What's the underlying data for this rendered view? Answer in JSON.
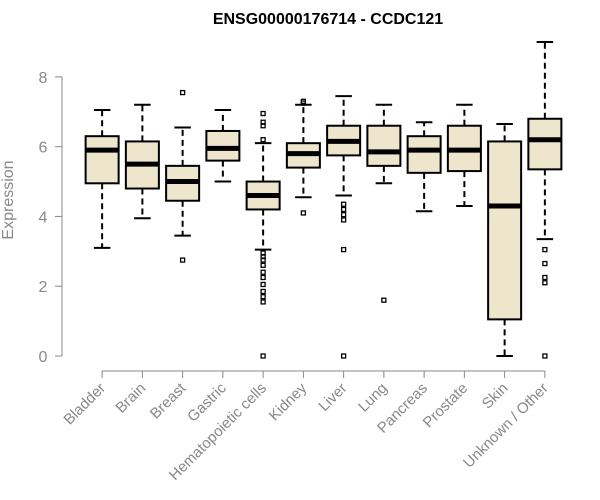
{
  "chart_data": {
    "type": "box",
    "title": "ENSG00000176714 - CCDC121",
    "xlabel": "",
    "ylabel": "Expression",
    "ylim": [
      0,
      9
    ],
    "yticks": [
      0,
      2,
      4,
      6,
      8
    ],
    "categories": [
      "Bladder",
      "Brain",
      "Breast",
      "Gastric",
      "Hematopoietic cells",
      "Kidney",
      "Liver",
      "Lung",
      "Pancreas",
      "Prostate",
      "Skin",
      "Unknown / Other"
    ],
    "boxes": [
      {
        "whisker_low": 3.1,
        "q1": 4.95,
        "median": 5.9,
        "q3": 6.3,
        "whisker_high": 7.05,
        "outliers": []
      },
      {
        "whisker_low": 3.95,
        "q1": 4.8,
        "median": 5.5,
        "q3": 6.15,
        "whisker_high": 7.2,
        "outliers": []
      },
      {
        "whisker_low": 3.45,
        "q1": 4.45,
        "median": 5.0,
        "q3": 5.45,
        "whisker_high": 6.55,
        "outliers": [
          7.55,
          2.75
        ]
      },
      {
        "whisker_low": 5.0,
        "q1": 5.6,
        "median": 5.95,
        "q3": 6.45,
        "whisker_high": 7.05,
        "outliers": []
      },
      {
        "whisker_low": 3.05,
        "q1": 4.2,
        "median": 4.6,
        "q3": 5.0,
        "whisker_high": 6.1,
        "outliers": [
          6.95,
          6.7,
          6.6,
          6.2,
          2.95,
          2.85,
          2.75,
          2.6,
          2.4,
          2.25,
          2.05,
          1.85,
          1.7,
          1.55,
          0.0
        ]
      },
      {
        "whisker_low": 4.55,
        "q1": 5.4,
        "median": 5.8,
        "q3": 6.1,
        "whisker_high": 7.2,
        "outliers": [
          7.3,
          7.25,
          4.1
        ]
      },
      {
        "whisker_low": 4.6,
        "q1": 5.75,
        "median": 6.15,
        "q3": 6.6,
        "whisker_high": 7.45,
        "outliers": [
          4.35,
          4.2,
          4.05,
          3.9,
          3.05,
          0.0
        ]
      },
      {
        "whisker_low": 4.95,
        "q1": 5.45,
        "median": 5.85,
        "q3": 6.6,
        "whisker_high": 7.2,
        "outliers": [
          1.6
        ]
      },
      {
        "whisker_low": 4.15,
        "q1": 5.25,
        "median": 5.9,
        "q3": 6.3,
        "whisker_high": 6.7,
        "outliers": []
      },
      {
        "whisker_low": 4.3,
        "q1": 5.3,
        "median": 5.9,
        "q3": 6.6,
        "whisker_high": 7.2,
        "outliers": []
      },
      {
        "whisker_low": 0.0,
        "q1": 1.05,
        "median": 4.3,
        "q3": 6.15,
        "whisker_high": 6.65,
        "outliers": []
      },
      {
        "whisker_low": 3.35,
        "q1": 5.35,
        "median": 6.2,
        "q3": 6.8,
        "whisker_high": 9.0,
        "outliers": [
          3.05,
          2.65,
          2.25,
          2.1,
          0.0
        ]
      }
    ],
    "box_fill": "#ede6cc",
    "box_stroke": "#000000",
    "axis_color": "#888888",
    "grid": false,
    "legend": "none"
  }
}
